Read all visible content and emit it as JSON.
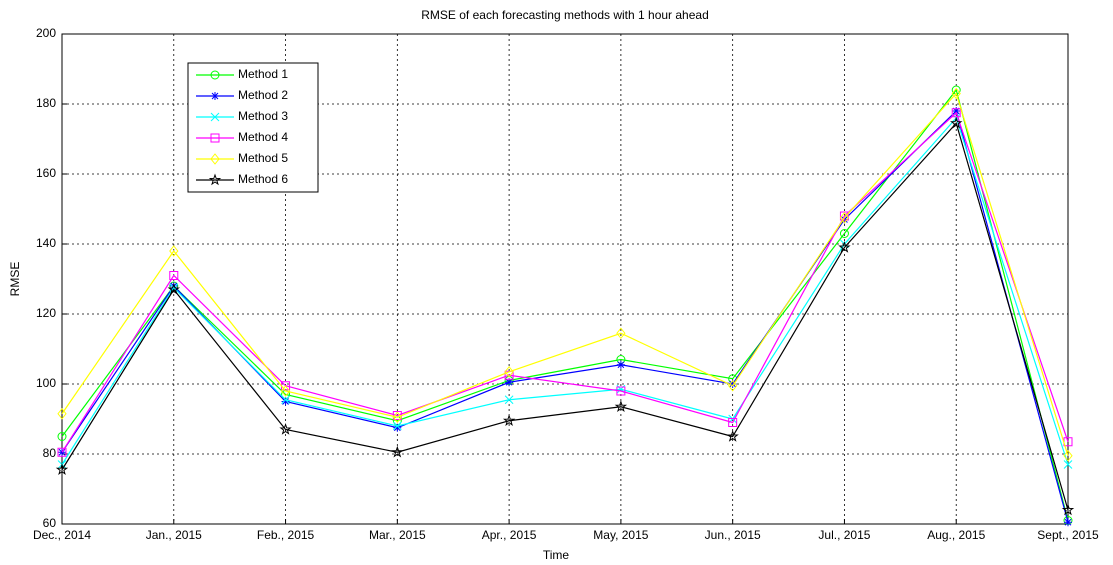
{
  "chart_data": {
    "type": "line",
    "title": "RMSE of each forecasting methods with 1 hour ahead",
    "x_label": "Time",
    "y_label": "RMSE",
    "categories": [
      "Dec., 2014",
      "Jan., 2015",
      "Feb., 2015",
      "Mar., 2015",
      "Apr., 2015",
      "May, 2015",
      "Jun., 2015",
      "Jul., 2015",
      "Aug., 2015",
      "Sept., 2015"
    ],
    "series": [
      {
        "name": "Method 1",
        "color": "#00ff00",
        "marker": "circle",
        "values": [
          85,
          128,
          97,
          89.5,
          101,
          107,
          101.5,
          143,
          184,
          61
        ]
      },
      {
        "name": "Method 2",
        "color": "#0000ff",
        "marker": "asterisk",
        "values": [
          80.5,
          128,
          95,
          87.5,
          100.5,
          105.5,
          100,
          147,
          178,
          60.5
        ]
      },
      {
        "name": "Method 3",
        "color": "#00ffff",
        "marker": "cross",
        "values": [
          77,
          127.5,
          95.5,
          88,
          95.5,
          98.5,
          90,
          140,
          176,
          77
        ]
      },
      {
        "name": "Method 4",
        "color": "#ff00ff",
        "marker": "square",
        "values": [
          80.5,
          131,
          99.5,
          91,
          102.5,
          98,
          89,
          148,
          177.5,
          83.5
        ]
      },
      {
        "name": "Method 5",
        "color": "#ffff00",
        "marker": "diamond",
        "values": [
          91.5,
          138,
          98,
          90.5,
          103.5,
          114.5,
          99.5,
          147.5,
          183,
          79.5
        ]
      },
      {
        "name": "Method 6",
        "color": "#000000",
        "marker": "pentagram",
        "values": [
          75.5,
          127,
          87,
          80.5,
          89.5,
          93.5,
          85,
          139,
          174.5,
          64
        ]
      }
    ],
    "ylim": [
      60,
      200
    ],
    "yticks": [
      60,
      80,
      100,
      120,
      140,
      160,
      180,
      200
    ],
    "grid": true,
    "legend": "upper left"
  }
}
